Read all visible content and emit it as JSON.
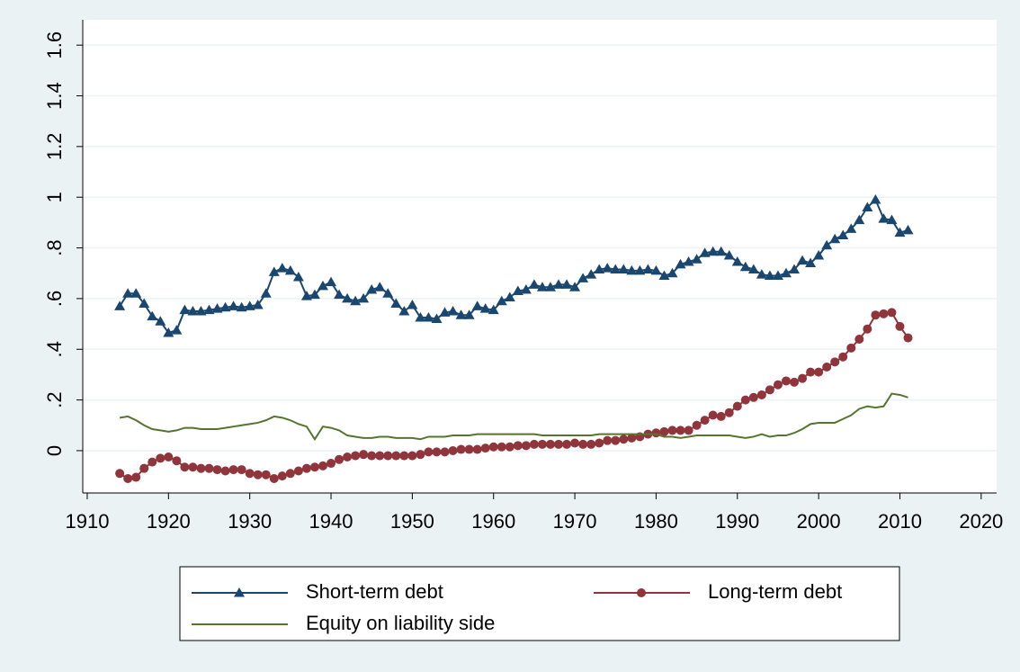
{
  "chart_data": {
    "type": "line",
    "x": [
      1914,
      1915,
      1916,
      1917,
      1918,
      1919,
      1920,
      1921,
      1922,
      1923,
      1924,
      1925,
      1926,
      1927,
      1928,
      1929,
      1930,
      1931,
      1932,
      1933,
      1934,
      1935,
      1936,
      1937,
      1938,
      1939,
      1940,
      1941,
      1942,
      1943,
      1944,
      1945,
      1946,
      1947,
      1948,
      1949,
      1950,
      1951,
      1952,
      1953,
      1954,
      1955,
      1956,
      1957,
      1958,
      1959,
      1960,
      1961,
      1962,
      1963,
      1964,
      1965,
      1966,
      1967,
      1968,
      1969,
      1970,
      1971,
      1972,
      1973,
      1974,
      1975,
      1976,
      1977,
      1978,
      1979,
      1980,
      1981,
      1982,
      1983,
      1984,
      1985,
      1986,
      1987,
      1988,
      1989,
      1990,
      1991,
      1992,
      1993,
      1994,
      1995,
      1996,
      1997,
      1998,
      1999,
      2000,
      2001,
      2002,
      2003,
      2004,
      2005,
      2006,
      2007,
      2008,
      2009,
      2010,
      2011
    ],
    "series": [
      {
        "name": "Short-term debt",
        "color": "#1a476f",
        "marker": "triangle",
        "values": [
          0.57,
          0.62,
          0.62,
          0.58,
          0.53,
          0.51,
          0.465,
          0.475,
          0.555,
          0.55,
          0.55,
          0.555,
          0.56,
          0.565,
          0.57,
          0.565,
          0.57,
          0.575,
          0.62,
          0.705,
          0.72,
          0.71,
          0.685,
          0.61,
          0.615,
          0.65,
          0.665,
          0.615,
          0.6,
          0.59,
          0.6,
          0.635,
          0.645,
          0.62,
          0.58,
          0.55,
          0.575,
          0.525,
          0.525,
          0.52,
          0.545,
          0.55,
          0.535,
          0.535,
          0.57,
          0.56,
          0.555,
          0.59,
          0.605,
          0.63,
          0.635,
          0.655,
          0.645,
          0.645,
          0.655,
          0.655,
          0.645,
          0.68,
          0.695,
          0.715,
          0.72,
          0.715,
          0.715,
          0.71,
          0.71,
          0.715,
          0.71,
          0.69,
          0.7,
          0.735,
          0.745,
          0.755,
          0.78,
          0.785,
          0.785,
          0.77,
          0.745,
          0.725,
          0.715,
          0.695,
          0.69,
          0.69,
          0.7,
          0.715,
          0.75,
          0.74,
          0.77,
          0.81,
          0.835,
          0.85,
          0.875,
          0.91,
          0.96,
          0.99,
          0.915,
          0.91,
          0.86,
          0.87
        ]
      },
      {
        "name": "Long-term debt",
        "color": "#90353b",
        "marker": "circle",
        "values": [
          -0.09,
          -0.11,
          -0.105,
          -0.07,
          -0.045,
          -0.03,
          -0.025,
          -0.04,
          -0.065,
          -0.065,
          -0.07,
          -0.07,
          -0.075,
          -0.08,
          -0.075,
          -0.075,
          -0.09,
          -0.095,
          -0.095,
          -0.11,
          -0.1,
          -0.09,
          -0.08,
          -0.07,
          -0.065,
          -0.06,
          -0.05,
          -0.035,
          -0.025,
          -0.02,
          -0.015,
          -0.02,
          -0.02,
          -0.02,
          -0.02,
          -0.02,
          -0.02,
          -0.015,
          -0.005,
          -0.005,
          -0.005,
          0,
          0.005,
          0.005,
          0.005,
          0.01,
          0.015,
          0.015,
          0.015,
          0.02,
          0.02,
          0.025,
          0.025,
          0.025,
          0.025,
          0.025,
          0.03,
          0.025,
          0.025,
          0.03,
          0.04,
          0.04,
          0.045,
          0.05,
          0.055,
          0.065,
          0.07,
          0.075,
          0.08,
          0.08,
          0.08,
          0.1,
          0.12,
          0.14,
          0.135,
          0.15,
          0.175,
          0.2,
          0.21,
          0.22,
          0.24,
          0.26,
          0.275,
          0.27,
          0.285,
          0.31,
          0.31,
          0.33,
          0.35,
          0.37,
          0.405,
          0.44,
          0.48,
          0.535,
          0.54,
          0.545,
          0.49,
          0.445
        ]
      },
      {
        "name": "Equity on liability side",
        "color": "#55752f",
        "marker": "none",
        "values": [
          0.13,
          0.135,
          0.12,
          0.1,
          0.085,
          0.08,
          0.075,
          0.08,
          0.09,
          0.09,
          0.085,
          0.085,
          0.085,
          0.09,
          0.095,
          0.1,
          0.105,
          0.11,
          0.12,
          0.135,
          0.13,
          0.12,
          0.105,
          0.095,
          0.045,
          0.095,
          0.09,
          0.08,
          0.06,
          0.055,
          0.05,
          0.05,
          0.055,
          0.055,
          0.05,
          0.05,
          0.05,
          0.045,
          0.055,
          0.055,
          0.055,
          0.06,
          0.06,
          0.06,
          0.065,
          0.065,
          0.065,
          0.065,
          0.065,
          0.065,
          0.065,
          0.065,
          0.06,
          0.06,
          0.06,
          0.06,
          0.06,
          0.06,
          0.06,
          0.065,
          0.065,
          0.065,
          0.065,
          0.065,
          0.065,
          0.065,
          0.065,
          0.055,
          0.055,
          0.05,
          0.055,
          0.06,
          0.06,
          0.06,
          0.06,
          0.06,
          0.055,
          0.05,
          0.055,
          0.065,
          0.055,
          0.06,
          0.06,
          0.07,
          0.085,
          0.105,
          0.11,
          0.11,
          0.11,
          0.125,
          0.14,
          0.165,
          0.175,
          0.17,
          0.175,
          0.225,
          0.22,
          0.21
        ]
      }
    ],
    "xlim": [
      1909.45,
      2021.9
    ],
    "ylim": [
      -0.167,
      1.7
    ],
    "xticks": [
      1910,
      1920,
      1930,
      1940,
      1950,
      1960,
      1970,
      1980,
      1990,
      2000,
      2010,
      2020
    ],
    "yticks": [
      0,
      {
        "value": 0.2,
        "label": ".2"
      },
      {
        "value": 0.4,
        "label": ".4"
      },
      {
        "value": 0.6,
        "label": ".6"
      },
      {
        "value": 0.8,
        "label": ".8"
      },
      1,
      1.2,
      1.4,
      1.6
    ],
    "grid": true,
    "legend": "bottom"
  }
}
